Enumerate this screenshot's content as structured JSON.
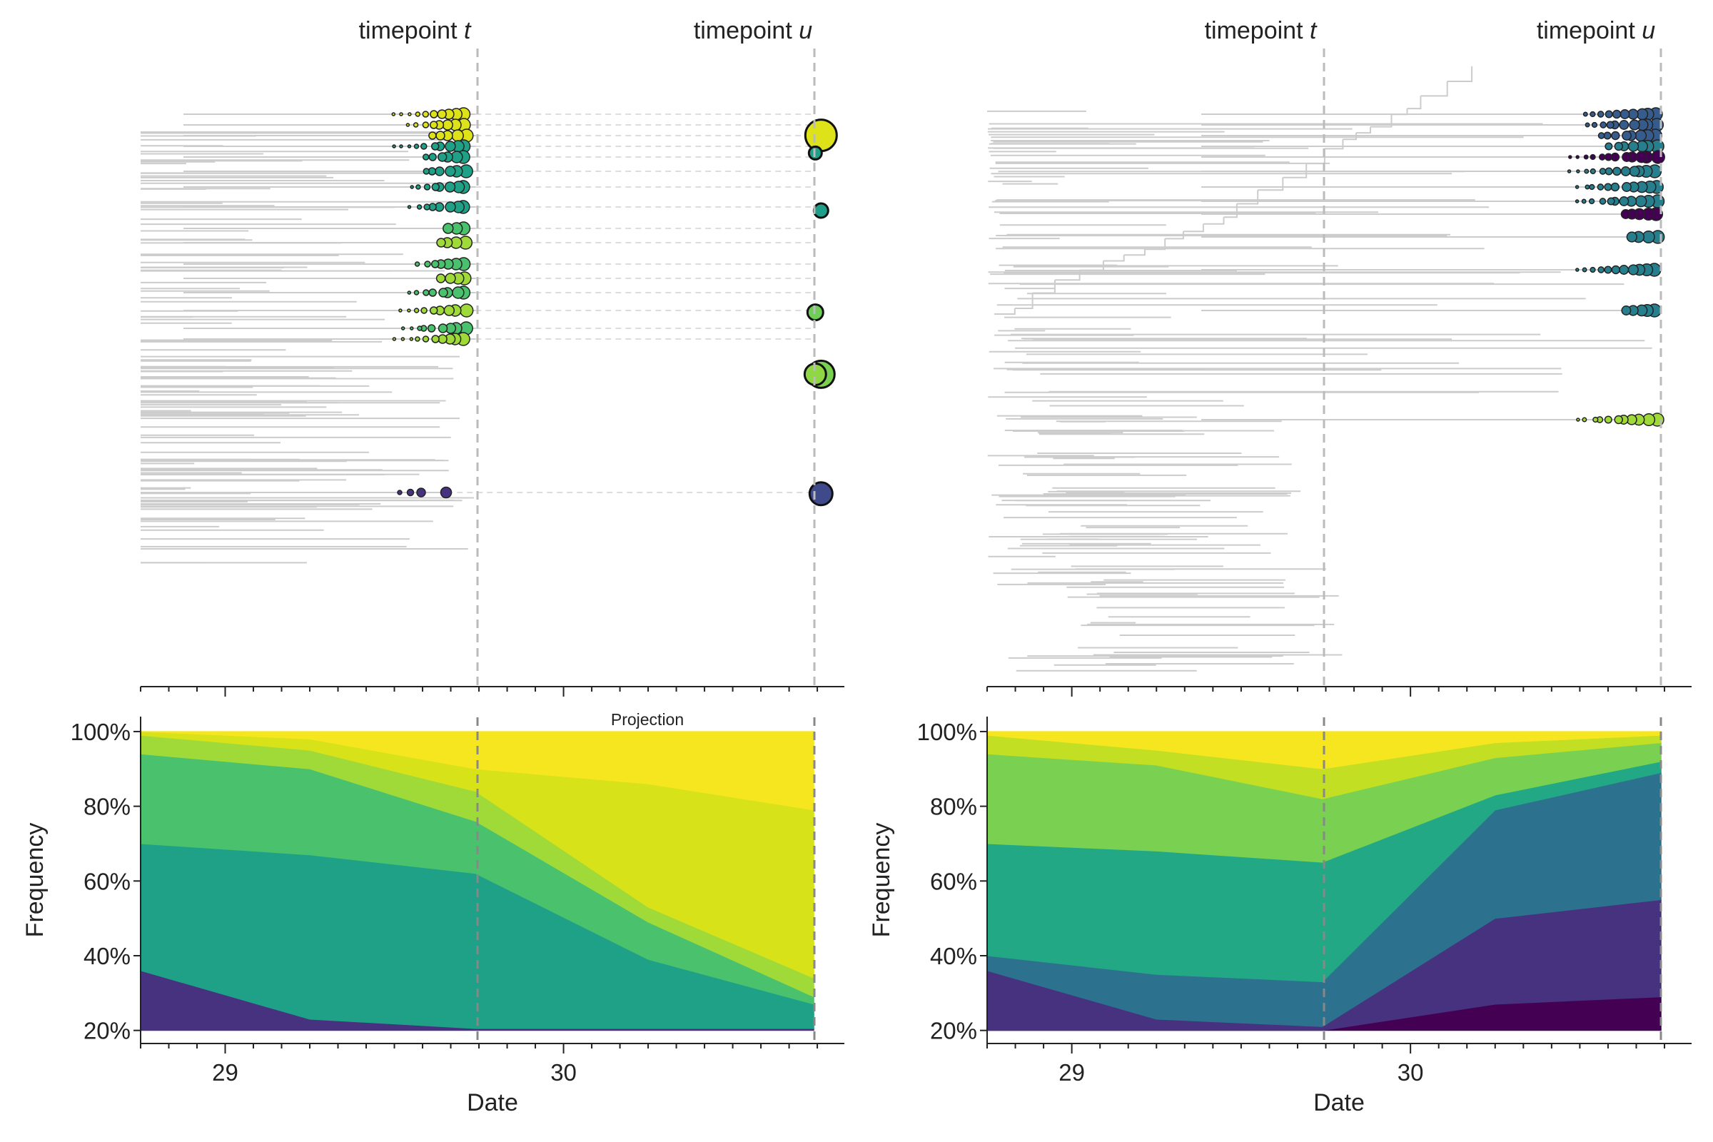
{
  "chart_data": [
    {
      "panel": "left",
      "type": "tree+stacked-area",
      "timepoint_labels": {
        "t_prefix": "timepoint ",
        "t_var": "t",
        "u_prefix": "timepoint ",
        "u_var": "u"
      },
      "annotation": "Projection",
      "xlabel": "Date",
      "ylabel": "Frequency",
      "x_ticks": [
        "29",
        "30"
      ],
      "xlim": [
        28.75,
        30.83
      ],
      "timepoint_t": 29.74,
      "timepoint_u": 30.74,
      "ylim": [
        0.165,
        1.04
      ],
      "y_ticks": [
        "20%",
        "40%",
        "60%",
        "80%",
        "100%"
      ],
      "area_x": [
        28.75,
        29.25,
        29.74,
        30.25,
        30.74
      ],
      "area_layers": [
        {
          "color": "#46327e",
          "upper": [
            0.36,
            0.23,
            0.205,
            0.205,
            0.205
          ]
        },
        {
          "color": "#1fa187",
          "upper": [
            0.7,
            0.67,
            0.62,
            0.39,
            0.27
          ]
        },
        {
          "color": "#4ac16d",
          "upper": [
            0.94,
            0.9,
            0.76,
            0.49,
            0.29
          ]
        },
        {
          "color": "#a0da39",
          "upper": [
            0.99,
            0.95,
            0.84,
            0.53,
            0.34
          ]
        },
        {
          "color": "#d8e219",
          "upper": [
            1.0,
            0.98,
            0.9,
            0.86,
            0.79
          ]
        },
        {
          "color": "#f6e620",
          "upper": [
            1.0,
            1.0,
            1.0,
            1.0,
            1.0
          ]
        }
      ],
      "tip_nodes": [
        {
          "y": 0.08,
          "r": 22,
          "color": "#dde318"
        },
        {
          "y": 0.12,
          "r": 9,
          "color": "#1fa187"
        },
        {
          "y": 0.25,
          "r": 10,
          "color": "#1f9e89"
        },
        {
          "y": 0.48,
          "r": 11,
          "color": "#6ece58"
        },
        {
          "y": 0.62,
          "r": 19,
          "color": "#7ad151"
        },
        {
          "y": 0.62,
          "r": 15,
          "color": "#8fd744"
        },
        {
          "y": 0.89,
          "r": 16,
          "color": "#3e4a89"
        }
      ]
    },
    {
      "panel": "right",
      "type": "tree+stacked-area",
      "timepoint_labels": {
        "t_prefix": "timepoint ",
        "t_var": "t",
        "u_prefix": "timepoint ",
        "u_var": "u"
      },
      "xlabel": "Date",
      "ylabel": "Frequency",
      "x_ticks": [
        "29",
        "30"
      ],
      "xlim": [
        28.75,
        30.83
      ],
      "timepoint_t": 29.74,
      "timepoint_u": 30.74,
      "ylim": [
        0.165,
        1.04
      ],
      "y_ticks": [
        "20%",
        "40%",
        "60%",
        "80%",
        "100%"
      ],
      "area_x": [
        28.75,
        29.25,
        29.74,
        30.25,
        30.74
      ],
      "area_layers": [
        {
          "color": "#440154",
          "upper": [
            0.2,
            0.2,
            0.2,
            0.27,
            0.29
          ]
        },
        {
          "color": "#46327e",
          "upper": [
            0.36,
            0.23,
            0.21,
            0.5,
            0.55
          ]
        },
        {
          "color": "#2c728e",
          "upper": [
            0.4,
            0.35,
            0.33,
            0.79,
            0.89
          ]
        },
        {
          "color": "#22a884",
          "upper": [
            0.7,
            0.68,
            0.65,
            0.83,
            0.92
          ]
        },
        {
          "color": "#7ad151",
          "upper": [
            0.94,
            0.91,
            0.82,
            0.93,
            0.97
          ]
        },
        {
          "color": "#c2df23",
          "upper": [
            0.99,
            0.95,
            0.9,
            0.97,
            0.99
          ]
        },
        {
          "color": "#f6e620",
          "upper": [
            1.0,
            1.0,
            1.0,
            1.0,
            1.0
          ]
        }
      ]
    }
  ]
}
